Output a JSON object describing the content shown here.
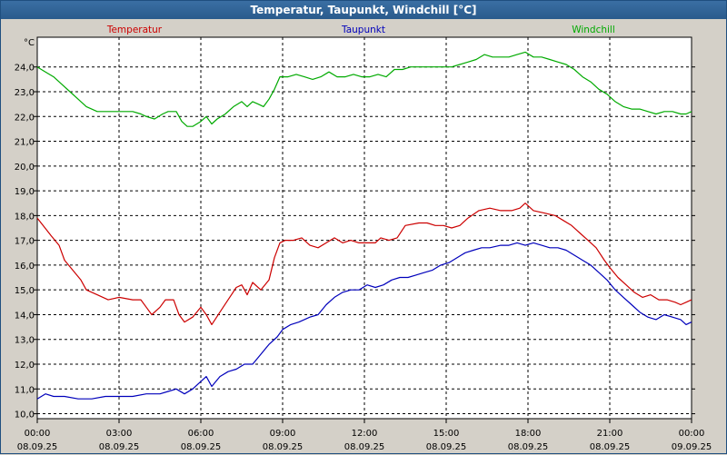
{
  "window": {
    "title": "Temperatur, Taupunkt, Windchill [°C]"
  },
  "colors": {
    "temperatur": "#cc0000",
    "taupunkt": "#0000bb",
    "windchill": "#00aa00",
    "titlebar": "#2a5b8c"
  },
  "chart_data": {
    "type": "line",
    "title": "Temperatur, Taupunkt, Windchill [°C]",
    "yunit": "°C",
    "ylim": [
      9.8,
      25.2
    ],
    "yticks": [
      "10,0",
      "11,0",
      "12,0",
      "13,0",
      "14,0",
      "15,0",
      "16,0",
      "17,0",
      "18,0",
      "19,0",
      "20,0",
      "21,0",
      "22,0",
      "23,0",
      "24,0"
    ],
    "xlim": [
      0,
      24
    ],
    "xticks": [
      {
        "time": "00:00",
        "date": "08.09.25"
      },
      {
        "time": "03:00",
        "date": "08.09.25"
      },
      {
        "time": "06:00",
        "date": "08.09.25"
      },
      {
        "time": "09:00",
        "date": "08.09.25"
      },
      {
        "time": "12:00",
        "date": "08.09.25"
      },
      {
        "time": "15:00",
        "date": "08.09.25"
      },
      {
        "time": "18:00",
        "date": "08.09.25"
      },
      {
        "time": "21:00",
        "date": "08.09.25"
      },
      {
        "time": "00:00",
        "date": "09.09.25"
      }
    ],
    "grid": true,
    "legend_position": "top",
    "series": [
      {
        "name": "Temperatur",
        "color": "#cc0000",
        "points": [
          [
            0,
            17.9
          ],
          [
            0.5,
            17.2
          ],
          [
            0.8,
            16.8
          ],
          [
            1.0,
            16.2
          ],
          [
            1.3,
            15.8
          ],
          [
            1.6,
            15.4
          ],
          [
            1.8,
            15.0
          ],
          [
            2.2,
            14.8
          ],
          [
            2.6,
            14.6
          ],
          [
            3.0,
            14.7
          ],
          [
            3.5,
            14.6
          ],
          [
            3.8,
            14.6
          ],
          [
            4.0,
            14.3
          ],
          [
            4.2,
            14.0
          ],
          [
            4.5,
            14.3
          ],
          [
            4.7,
            14.6
          ],
          [
            5.0,
            14.6
          ],
          [
            5.2,
            14.0
          ],
          [
            5.4,
            13.7
          ],
          [
            5.7,
            13.9
          ],
          [
            6.0,
            14.3
          ],
          [
            6.2,
            14.0
          ],
          [
            6.4,
            13.6
          ],
          [
            6.7,
            14.1
          ],
          [
            7.0,
            14.6
          ],
          [
            7.3,
            15.1
          ],
          [
            7.5,
            15.2
          ],
          [
            7.7,
            14.8
          ],
          [
            7.9,
            15.3
          ],
          [
            8.2,
            15.0
          ],
          [
            8.5,
            15.4
          ],
          [
            8.7,
            16.3
          ],
          [
            8.9,
            16.9
          ],
          [
            9.1,
            17.0
          ],
          [
            9.4,
            17.0
          ],
          [
            9.7,
            17.1
          ],
          [
            10.0,
            16.8
          ],
          [
            10.3,
            16.7
          ],
          [
            10.6,
            16.9
          ],
          [
            10.9,
            17.1
          ],
          [
            11.2,
            16.9
          ],
          [
            11.5,
            17.0
          ],
          [
            11.8,
            16.9
          ],
          [
            12.1,
            16.9
          ],
          [
            12.4,
            16.9
          ],
          [
            12.6,
            17.1
          ],
          [
            12.9,
            17.0
          ],
          [
            13.2,
            17.1
          ],
          [
            13.5,
            17.6
          ],
          [
            14.0,
            17.7
          ],
          [
            14.3,
            17.7
          ],
          [
            14.6,
            17.6
          ],
          [
            14.9,
            17.6
          ],
          [
            15.2,
            17.5
          ],
          [
            15.5,
            17.6
          ],
          [
            15.8,
            17.9
          ],
          [
            16.2,
            18.2
          ],
          [
            16.6,
            18.3
          ],
          [
            17.0,
            18.2
          ],
          [
            17.4,
            18.2
          ],
          [
            17.7,
            18.3
          ],
          [
            17.9,
            18.5
          ],
          [
            18.2,
            18.2
          ],
          [
            18.6,
            18.1
          ],
          [
            19.0,
            18.0
          ],
          [
            19.3,
            17.8
          ],
          [
            19.6,
            17.6
          ],
          [
            19.9,
            17.3
          ],
          [
            20.2,
            17.0
          ],
          [
            20.5,
            16.7
          ],
          [
            20.8,
            16.2
          ],
          [
            21.0,
            15.9
          ],
          [
            21.3,
            15.5
          ],
          [
            21.6,
            15.2
          ],
          [
            21.9,
            14.9
          ],
          [
            22.2,
            14.7
          ],
          [
            22.5,
            14.8
          ],
          [
            22.8,
            14.6
          ],
          [
            23.1,
            14.6
          ],
          [
            23.4,
            14.5
          ],
          [
            23.6,
            14.4
          ],
          [
            23.8,
            14.5
          ],
          [
            24.0,
            14.6
          ]
        ]
      },
      {
        "name": "Taupunkt",
        "color": "#0000bb",
        "points": [
          [
            0,
            10.6
          ],
          [
            0.3,
            10.8
          ],
          [
            0.6,
            10.7
          ],
          [
            1.0,
            10.7
          ],
          [
            1.5,
            10.6
          ],
          [
            2.0,
            10.6
          ],
          [
            2.5,
            10.7
          ],
          [
            3.0,
            10.7
          ],
          [
            3.5,
            10.7
          ],
          [
            4.0,
            10.8
          ],
          [
            4.5,
            10.8
          ],
          [
            4.8,
            10.9
          ],
          [
            5.1,
            11.0
          ],
          [
            5.4,
            10.8
          ],
          [
            5.7,
            11.0
          ],
          [
            6.0,
            11.3
          ],
          [
            6.2,
            11.5
          ],
          [
            6.4,
            11.1
          ],
          [
            6.7,
            11.5
          ],
          [
            7.0,
            11.7
          ],
          [
            7.3,
            11.8
          ],
          [
            7.6,
            12.0
          ],
          [
            7.9,
            12.0
          ],
          [
            8.2,
            12.4
          ],
          [
            8.5,
            12.8
          ],
          [
            8.8,
            13.1
          ],
          [
            9.0,
            13.4
          ],
          [
            9.3,
            13.6
          ],
          [
            9.6,
            13.7
          ],
          [
            10.0,
            13.9
          ],
          [
            10.3,
            14.0
          ],
          [
            10.6,
            14.4
          ],
          [
            10.9,
            14.7
          ],
          [
            11.2,
            14.9
          ],
          [
            11.5,
            15.0
          ],
          [
            11.8,
            15.0
          ],
          [
            12.1,
            15.2
          ],
          [
            12.4,
            15.1
          ],
          [
            12.7,
            15.2
          ],
          [
            13.0,
            15.4
          ],
          [
            13.3,
            15.5
          ],
          [
            13.6,
            15.5
          ],
          [
            13.9,
            15.6
          ],
          [
            14.2,
            15.7
          ],
          [
            14.5,
            15.8
          ],
          [
            14.8,
            16.0
          ],
          [
            15.1,
            16.1
          ],
          [
            15.4,
            16.3
          ],
          [
            15.7,
            16.5
          ],
          [
            16.0,
            16.6
          ],
          [
            16.3,
            16.7
          ],
          [
            16.6,
            16.7
          ],
          [
            17.0,
            16.8
          ],
          [
            17.3,
            16.8
          ],
          [
            17.6,
            16.9
          ],
          [
            17.9,
            16.8
          ],
          [
            18.2,
            16.9
          ],
          [
            18.5,
            16.8
          ],
          [
            18.8,
            16.7
          ],
          [
            19.1,
            16.7
          ],
          [
            19.4,
            16.6
          ],
          [
            19.7,
            16.4
          ],
          [
            20.0,
            16.2
          ],
          [
            20.3,
            16.0
          ],
          [
            20.6,
            15.7
          ],
          [
            20.9,
            15.4
          ],
          [
            21.2,
            15.0
          ],
          [
            21.5,
            14.7
          ],
          [
            21.8,
            14.4
          ],
          [
            22.1,
            14.1
          ],
          [
            22.4,
            13.9
          ],
          [
            22.7,
            13.8
          ],
          [
            23.0,
            14.0
          ],
          [
            23.3,
            13.9
          ],
          [
            23.6,
            13.8
          ],
          [
            23.8,
            13.6
          ],
          [
            24.0,
            13.7
          ]
        ]
      },
      {
        "name": "Windchill",
        "color": "#00aa00",
        "points": [
          [
            0,
            24.0
          ],
          [
            0.3,
            23.8
          ],
          [
            0.6,
            23.6
          ],
          [
            0.9,
            23.3
          ],
          [
            1.2,
            23.0
          ],
          [
            1.5,
            22.7
          ],
          [
            1.8,
            22.4
          ],
          [
            2.2,
            22.2
          ],
          [
            2.6,
            22.2
          ],
          [
            3.0,
            22.2
          ],
          [
            3.5,
            22.2
          ],
          [
            3.8,
            22.1
          ],
          [
            4.0,
            22.0
          ],
          [
            4.3,
            21.9
          ],
          [
            4.6,
            22.1
          ],
          [
            4.8,
            22.2
          ],
          [
            5.1,
            22.2
          ],
          [
            5.3,
            21.8
          ],
          [
            5.5,
            21.6
          ],
          [
            5.7,
            21.6
          ],
          [
            6.0,
            21.8
          ],
          [
            6.2,
            22.0
          ],
          [
            6.4,
            21.7
          ],
          [
            6.6,
            21.9
          ],
          [
            6.9,
            22.1
          ],
          [
            7.2,
            22.4
          ],
          [
            7.5,
            22.6
          ],
          [
            7.7,
            22.4
          ],
          [
            7.9,
            22.6
          ],
          [
            8.1,
            22.5
          ],
          [
            8.3,
            22.4
          ],
          [
            8.5,
            22.7
          ],
          [
            8.7,
            23.1
          ],
          [
            8.9,
            23.6
          ],
          [
            9.2,
            23.6
          ],
          [
            9.5,
            23.7
          ],
          [
            9.8,
            23.6
          ],
          [
            10.1,
            23.5
          ],
          [
            10.4,
            23.6
          ],
          [
            10.7,
            23.8
          ],
          [
            11.0,
            23.6
          ],
          [
            11.3,
            23.6
          ],
          [
            11.6,
            23.7
          ],
          [
            11.9,
            23.6
          ],
          [
            12.2,
            23.6
          ],
          [
            12.5,
            23.7
          ],
          [
            12.8,
            23.6
          ],
          [
            13.1,
            23.9
          ],
          [
            13.4,
            23.9
          ],
          [
            13.7,
            24.0
          ],
          [
            14.0,
            24.0
          ],
          [
            14.3,
            24.0
          ],
          [
            14.6,
            24.0
          ],
          [
            14.9,
            24.0
          ],
          [
            15.2,
            24.0
          ],
          [
            15.5,
            24.1
          ],
          [
            15.8,
            24.2
          ],
          [
            16.1,
            24.3
          ],
          [
            16.4,
            24.5
          ],
          [
            16.7,
            24.4
          ],
          [
            17.0,
            24.4
          ],
          [
            17.3,
            24.4
          ],
          [
            17.6,
            24.5
          ],
          [
            17.9,
            24.6
          ],
          [
            18.2,
            24.4
          ],
          [
            18.5,
            24.4
          ],
          [
            18.8,
            24.3
          ],
          [
            19.1,
            24.2
          ],
          [
            19.4,
            24.1
          ],
          [
            19.7,
            23.9
          ],
          [
            20.0,
            23.6
          ],
          [
            20.3,
            23.4
          ],
          [
            20.6,
            23.1
          ],
          [
            20.9,
            22.9
          ],
          [
            21.2,
            22.6
          ],
          [
            21.5,
            22.4
          ],
          [
            21.8,
            22.3
          ],
          [
            22.1,
            22.3
          ],
          [
            22.4,
            22.2
          ],
          [
            22.7,
            22.1
          ],
          [
            23.0,
            22.2
          ],
          [
            23.3,
            22.2
          ],
          [
            23.6,
            22.1
          ],
          [
            23.8,
            22.1
          ],
          [
            24.0,
            22.2
          ]
        ]
      }
    ]
  }
}
